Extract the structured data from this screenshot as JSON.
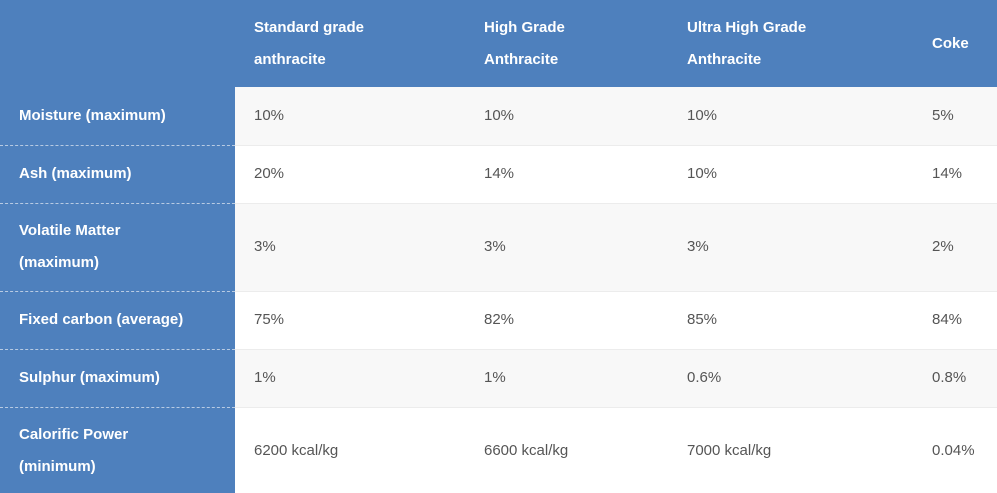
{
  "table": {
    "columns": [
      "Standard grade anthracite",
      "High Grade Anthracite",
      "Ultra High Grade Anthracite",
      "Coke"
    ],
    "rows": [
      [
        "Moisture (maximum)",
        "10%",
        "10%",
        "10%",
        "5%"
      ],
      [
        "Ash (maximum)",
        "20%",
        "14%",
        "10%",
        "14%"
      ],
      [
        "Volatile Matter (maximum)",
        "3%",
        "3%",
        "3%",
        "2%"
      ],
      [
        "Fixed carbon (average)",
        "75%",
        "82%",
        "85%",
        "84%"
      ],
      [
        "Sulphur (maximum)",
        "1%",
        "1%",
        "0.6%",
        "0.8%"
      ],
      [
        "Calorific Power (minimum)",
        "6200 kcal/kg",
        "6600 kcal/kg",
        "7000 kcal/kg",
        "0.04%"
      ]
    ]
  }
}
